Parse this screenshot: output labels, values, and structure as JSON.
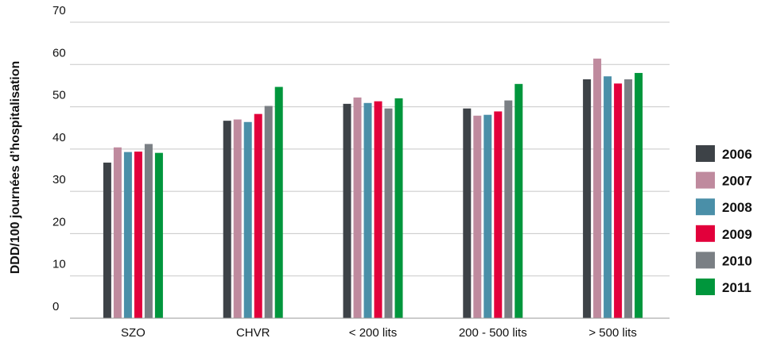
{
  "chart_data": {
    "type": "bar",
    "title": "",
    "xlabel": "",
    "ylabel": "DDD/100 journées d’hospitalisation",
    "ylim": [
      0,
      70
    ],
    "yticks": [
      0,
      10,
      20,
      30,
      40,
      50,
      60,
      70
    ],
    "grid": true,
    "legend_position": "right",
    "categories": [
      "SZO",
      "CHVR",
      "< 200 lits",
      "200 - 500 lits",
      "> 500 lits"
    ],
    "series": [
      {
        "name": "2006",
        "color": "#3d4247",
        "values": [
          36.8,
          46.7,
          50.7,
          49.6,
          56.5
        ]
      },
      {
        "name": "2007",
        "color": "#bf8a9e",
        "values": [
          40.4,
          47.0,
          52.2,
          47.9,
          61.4
        ]
      },
      {
        "name": "2008",
        "color": "#4a8fa8",
        "values": [
          39.3,
          46.4,
          50.9,
          48.1,
          57.2
        ]
      },
      {
        "name": "2009",
        "color": "#e2003b",
        "values": [
          39.4,
          48.3,
          51.3,
          48.9,
          55.5
        ]
      },
      {
        "name": "2010",
        "color": "#7a7f84",
        "values": [
          41.2,
          50.2,
          49.6,
          51.5,
          56.5
        ]
      },
      {
        "name": "2011",
        "color": "#00963c",
        "values": [
          39.1,
          54.7,
          52.0,
          55.4,
          58.0
        ]
      }
    ]
  }
}
